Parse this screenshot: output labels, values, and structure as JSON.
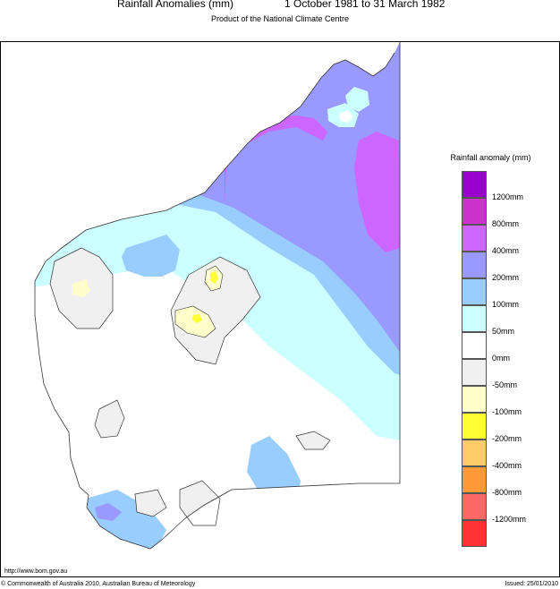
{
  "header": {
    "title_left": "Rainfall Anomalies (mm)",
    "title_right": "1 October 1981 to 31 March 1982",
    "subtitle": "Product of the National Climate Centre"
  },
  "legend": {
    "title": "Rainfall anomaly (mm)",
    "swatches": [
      {
        "color": "#9900cc"
      },
      {
        "color": "#cc33cc"
      },
      {
        "color": "#cc66ff"
      },
      {
        "color": "#9999ff"
      },
      {
        "color": "#99ccff"
      },
      {
        "color": "#ccffff"
      },
      {
        "color": "#ffffff"
      },
      {
        "color": "#f0f0f0"
      },
      {
        "color": "#ffffcc"
      },
      {
        "color": "#ffff33"
      },
      {
        "color": "#ffcc66"
      },
      {
        "color": "#ff9933"
      },
      {
        "color": "#ff6666"
      },
      {
        "color": "#ff3333"
      }
    ],
    "labels": [
      "1200mm",
      "800mm",
      "400mm",
      "200mm",
      "100mm",
      "50mm",
      "0mm",
      "-50mm",
      "-100mm",
      "-200mm",
      "-400mm",
      "-800mm",
      "-1200mm"
    ]
  },
  "footer": {
    "url": "http://www.bom.gov.au",
    "copyright": "© Commonwealth of Australia 2010, Australian Bureau of Meteorology",
    "issued": "Issued: 25/01/2010"
  }
}
